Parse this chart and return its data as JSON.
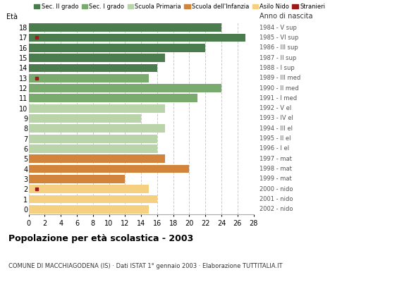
{
  "ages": [
    18,
    17,
    16,
    15,
    14,
    13,
    12,
    11,
    10,
    9,
    8,
    7,
    6,
    5,
    4,
    3,
    2,
    1,
    0
  ],
  "values": [
    24,
    27,
    22,
    17,
    16,
    15,
    24,
    21,
    17,
    14,
    17,
    16,
    16,
    17,
    20,
    12,
    15,
    16,
    15
  ],
  "stranieri_vals": [
    0,
    1,
    0,
    0,
    0,
    1,
    0,
    0,
    0,
    0,
    0,
    0,
    0,
    0,
    0,
    0,
    1,
    0,
    0
  ],
  "anno_nascita": [
    "1984 - V sup",
    "1985 - VI sup",
    "1986 - III sup",
    "1987 - II sup",
    "1988 - I sup",
    "1989 - III med",
    "1990 - II med",
    "1991 - I med",
    "1992 - V el",
    "1993 - IV el",
    "1994 - III el",
    "1995 - II el",
    "1996 - I el",
    "1997 - mat",
    "1998 - mat",
    "1999 - mat",
    "2000 - nido",
    "2001 - nido",
    "2002 - nido"
  ],
  "color_by_age": {
    "18": "#4a7c4e",
    "17": "#4a7c4e",
    "16": "#4a7c4e",
    "15": "#4a7c4e",
    "14": "#4a7c4e",
    "13": "#7aab6e",
    "12": "#7aab6e",
    "11": "#7aab6e",
    "10": "#b8d4a8",
    "9": "#b8d4a8",
    "8": "#b8d4a8",
    "7": "#b8d4a8",
    "6": "#b8d4a8",
    "5": "#d2853a",
    "4": "#d2853a",
    "3": "#d2853a",
    "2": "#f5d080",
    "1": "#f5d080",
    "0": "#f5d080"
  },
  "stranieri_color": "#9b1a1a",
  "legend_labels": [
    "Sec. II grado",
    "Sec. I grado",
    "Scuola Primaria",
    "Scuola dell'Infanzia",
    "Asilo Nido",
    "Stranieri"
  ],
  "legend_colors": [
    "#4a7c4e",
    "#7aab6e",
    "#b8d4a8",
    "#d2853a",
    "#f5d080",
    "#9b1a1a"
  ],
  "title": "Popolazione per età scolastica - 2003",
  "subtitle": "COMUNE DI MACCHIAGODENA (IS) · Dati ISTAT 1° gennaio 2003 · Elaborazione TUTTITALIA.IT",
  "eta_label": "Età",
  "anno_label": "Anno di nascita",
  "xlim": [
    0,
    28
  ],
  "xticks": [
    0,
    2,
    4,
    6,
    8,
    10,
    12,
    14,
    16,
    18,
    20,
    22,
    24,
    26,
    28
  ],
  "background_color": "#ffffff",
  "grid_color": "#cccccc",
  "bar_height": 0.82
}
